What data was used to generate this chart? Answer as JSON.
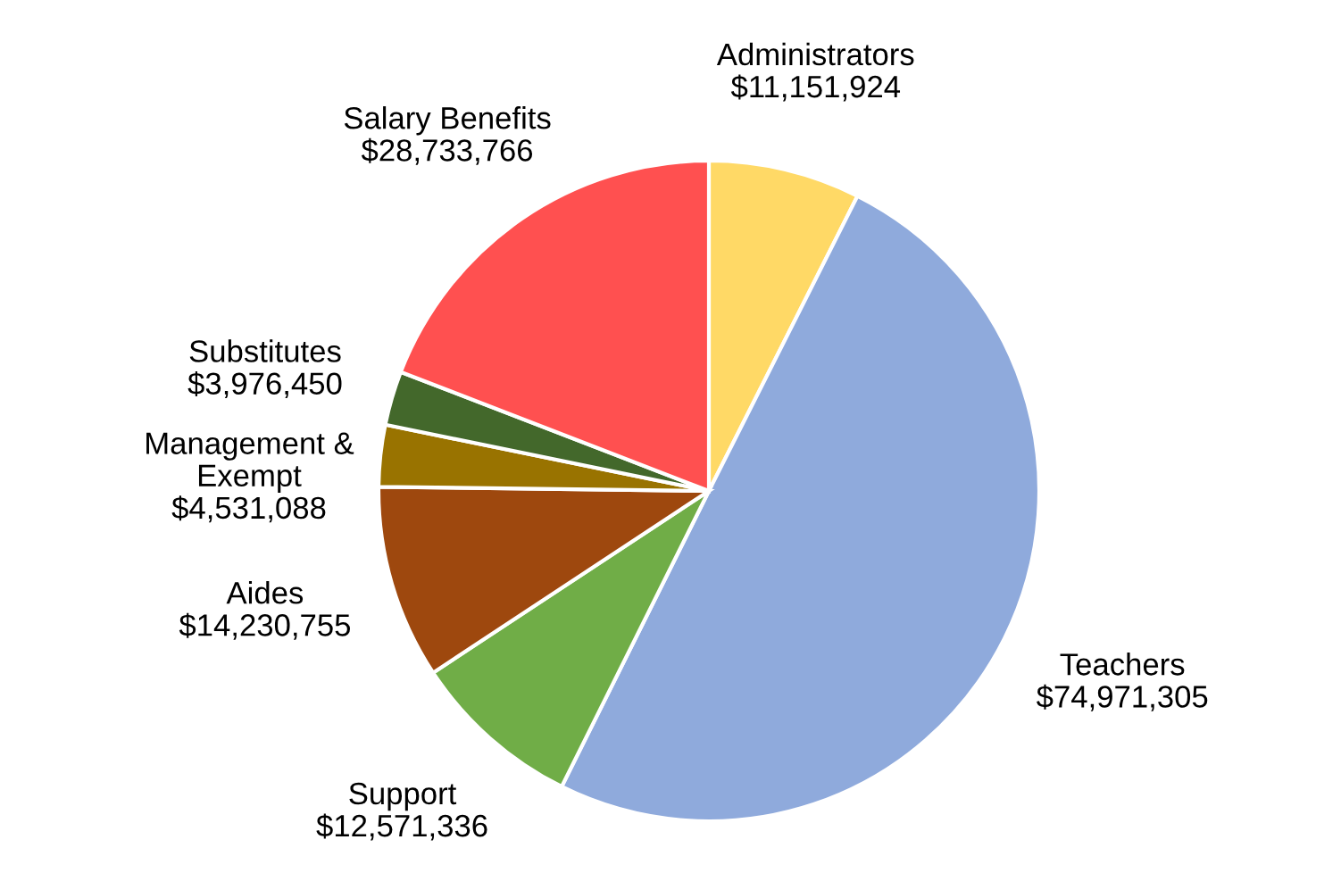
{
  "chart_data": {
    "type": "pie",
    "categories": [
      "Administrators",
      "Teachers",
      "Support",
      "Aides",
      "Management &\nExempt",
      "Substitutes",
      "Salary Benefits"
    ],
    "values": [
      11151924,
      74971305,
      12571336,
      14230755,
      4531088,
      3976450,
      28733766
    ],
    "value_labels": [
      "$11,151,924",
      "$74,971,305",
      "$12,571,336",
      "$14,230,755",
      "$4,531,088",
      "$3,976,450",
      "$28,733,766"
    ],
    "colors": [
      "#ffd966",
      "#8faadc",
      "#70ad47",
      "#9e480e",
      "#997300",
      "#43682b",
      "#ff5050"
    ]
  }
}
